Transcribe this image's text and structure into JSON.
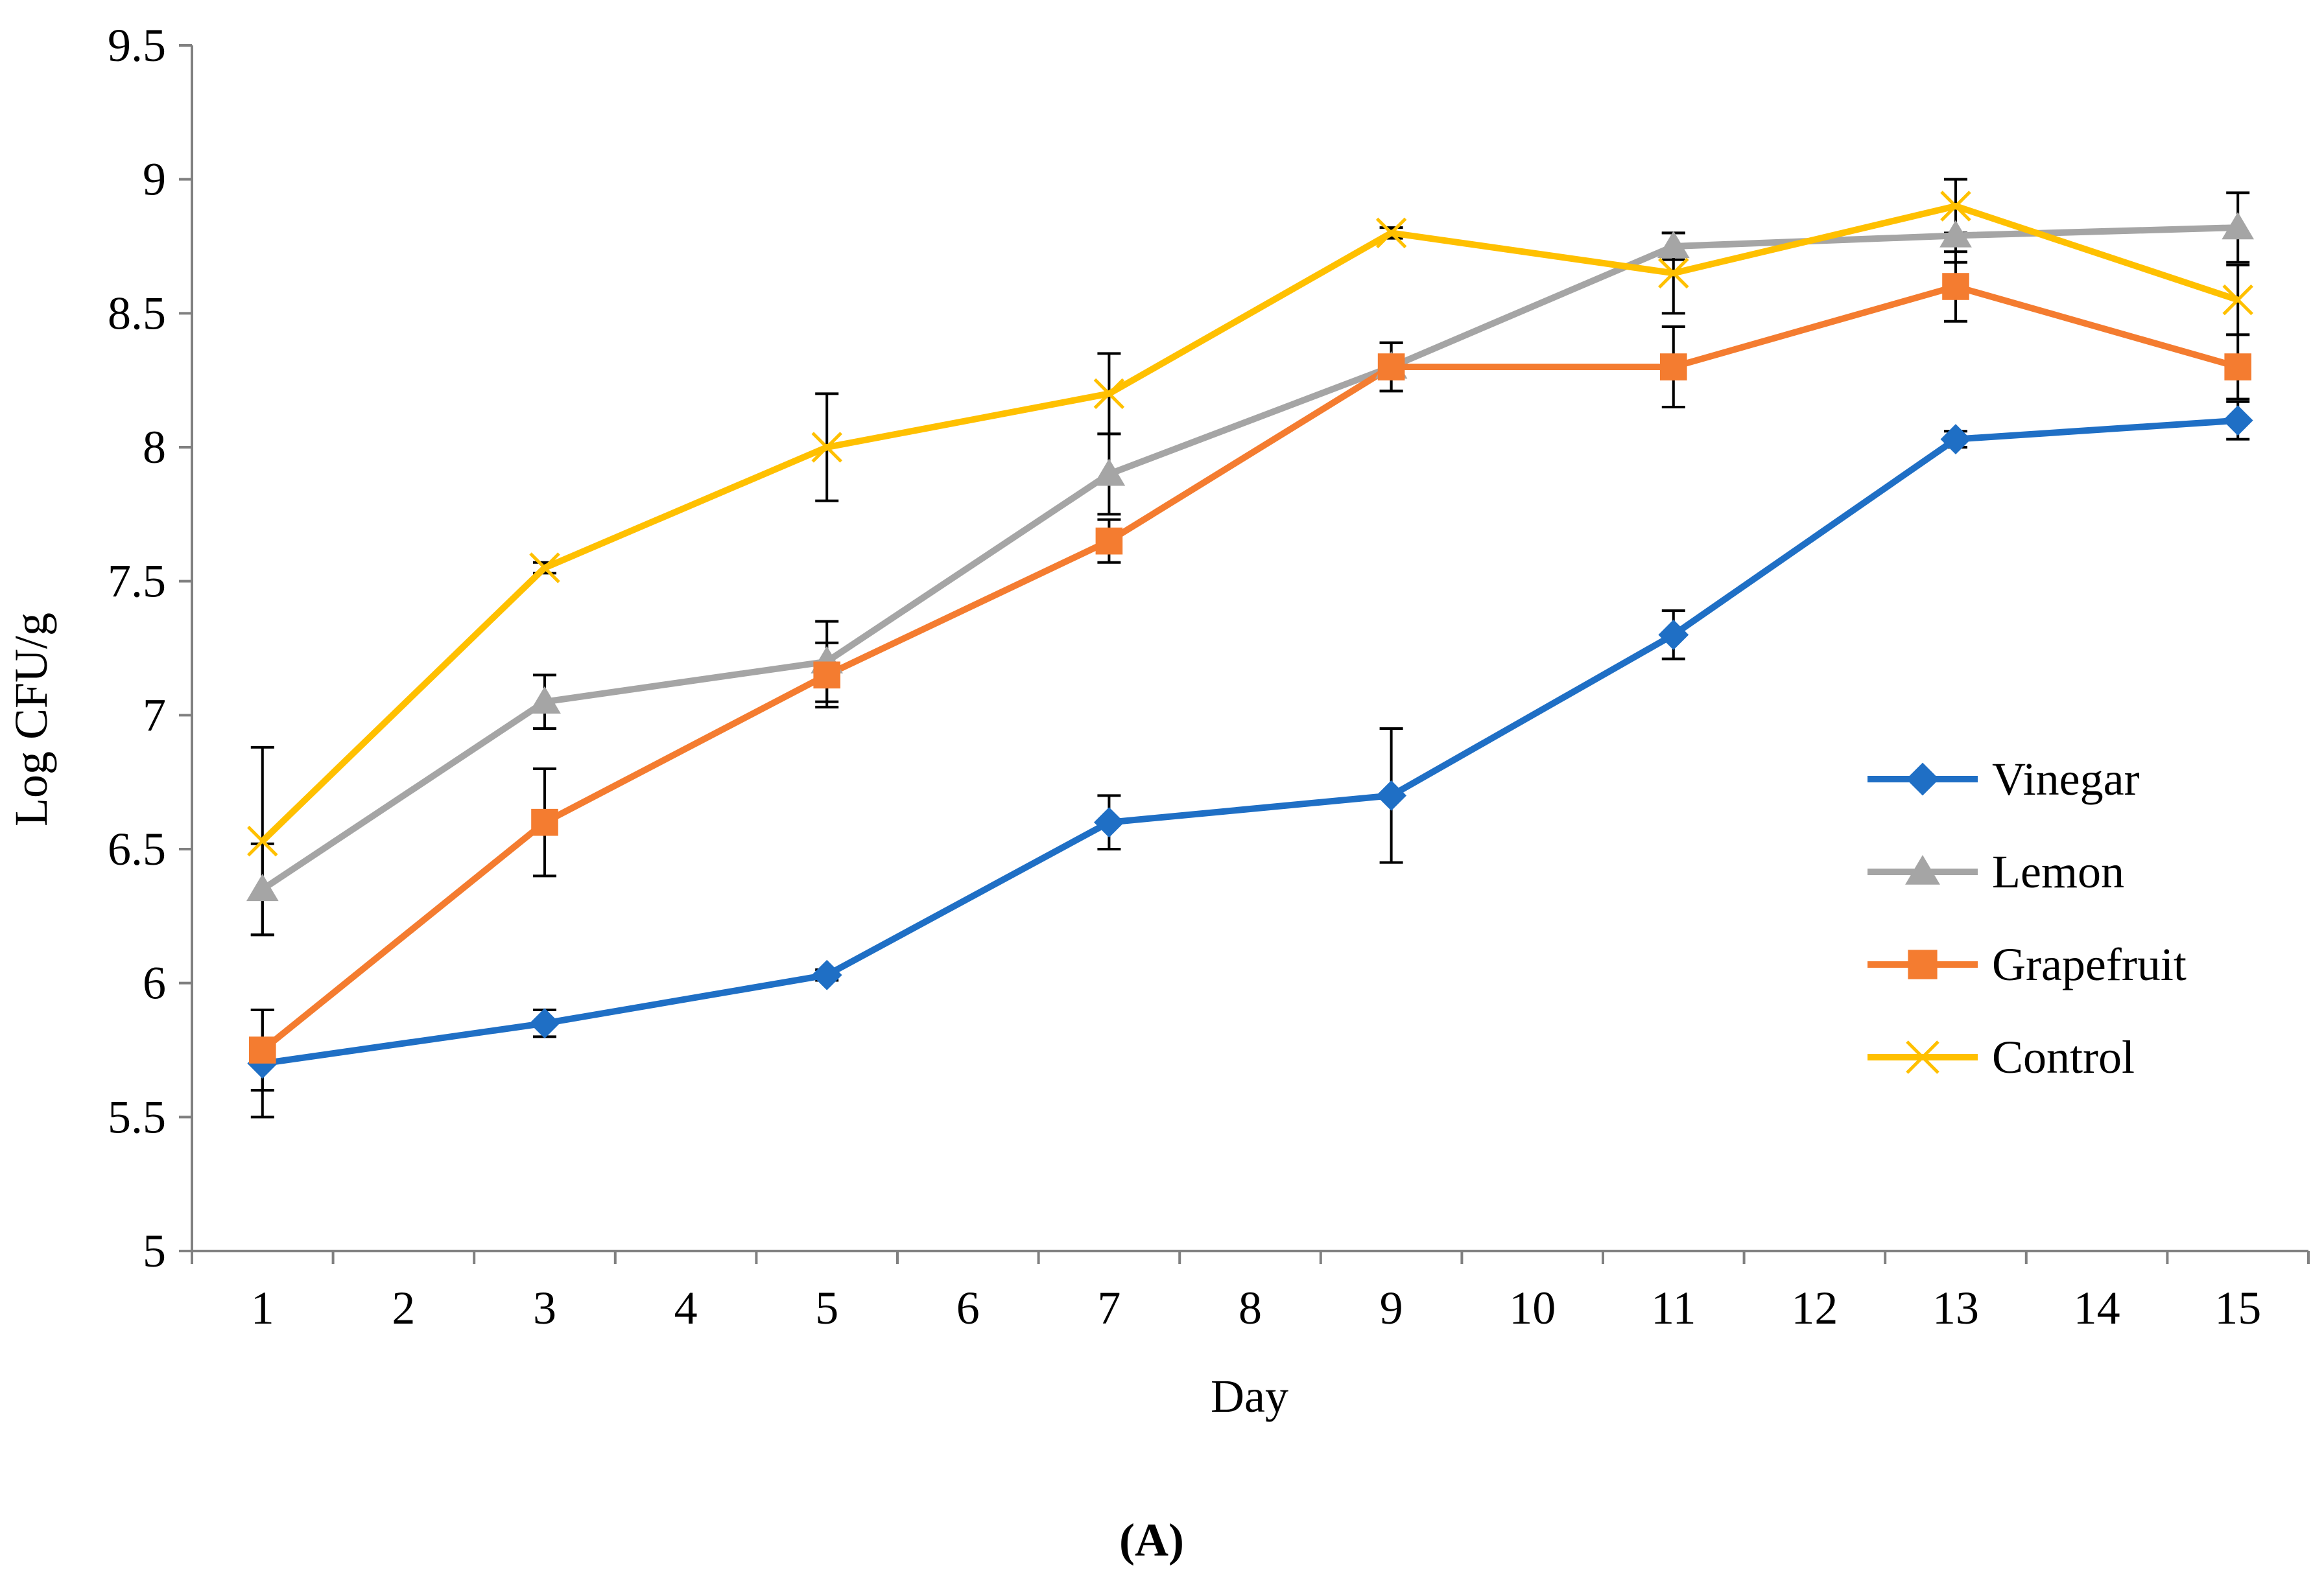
{
  "chart_data": {
    "type": "line",
    "title": "",
    "xlabel": "Day",
    "ylabel": "Log CFU/g",
    "caption": "(A)",
    "x_categories": [
      "1",
      "2",
      "3",
      "4",
      "5",
      "6",
      "7",
      "8",
      "9",
      "10",
      "11",
      "12",
      "13",
      "14",
      "15"
    ],
    "y_ticks": [
      "5",
      "5.5",
      "6",
      "6.5",
      "7",
      "7.5",
      "8",
      "8.5",
      "9",
      "9.5"
    ],
    "ylim": [
      5,
      9.5
    ],
    "grid": false,
    "legend_position": "right",
    "series": [
      {
        "name": "Vinegar",
        "color": "#1F6FC5",
        "marker": "diamond",
        "x": [
          1,
          3,
          5,
          7,
          9,
          11,
          13,
          15
        ],
        "y": [
          5.7,
          5.85,
          6.03,
          6.6,
          6.7,
          7.3,
          8.03,
          8.1
        ],
        "err": [
          0.2,
          0.05,
          0.02,
          0.1,
          0.25,
          0.09,
          0.03,
          0.07
        ]
      },
      {
        "name": "Lemon",
        "color": "#A5A5A5",
        "marker": "triangle",
        "x": [
          1,
          3,
          5,
          7,
          9,
          11,
          13,
          15
        ],
        "y": [
          6.35,
          7.05,
          7.2,
          7.9,
          8.3,
          8.75,
          8.79,
          8.82
        ],
        "err": [
          0.17,
          0.1,
          0.15,
          0.15,
          0.09,
          0.05,
          0.1,
          0.13
        ]
      },
      {
        "name": "Grapefruit",
        "color": "#F47C30",
        "marker": "square",
        "x": [
          1,
          3,
          5,
          7,
          9,
          11,
          13,
          15
        ],
        "y": [
          5.75,
          6.6,
          7.15,
          7.65,
          8.3,
          8.3,
          8.6,
          8.3
        ],
        "err": [
          0.15,
          0.2,
          0.12,
          0.08,
          0.09,
          0.15,
          0.13,
          0.12
        ]
      },
      {
        "name": "Control",
        "color": "#FFC000",
        "marker": "x",
        "x": [
          1,
          3,
          5,
          7,
          9,
          11,
          13,
          15
        ],
        "y": [
          6.53,
          7.55,
          8.0,
          8.2,
          8.8,
          8.65,
          8.9,
          8.55
        ],
        "err": [
          0.35,
          0.02,
          0.2,
          0.15,
          0.02,
          0.15,
          0.1,
          0.13
        ]
      }
    ]
  }
}
